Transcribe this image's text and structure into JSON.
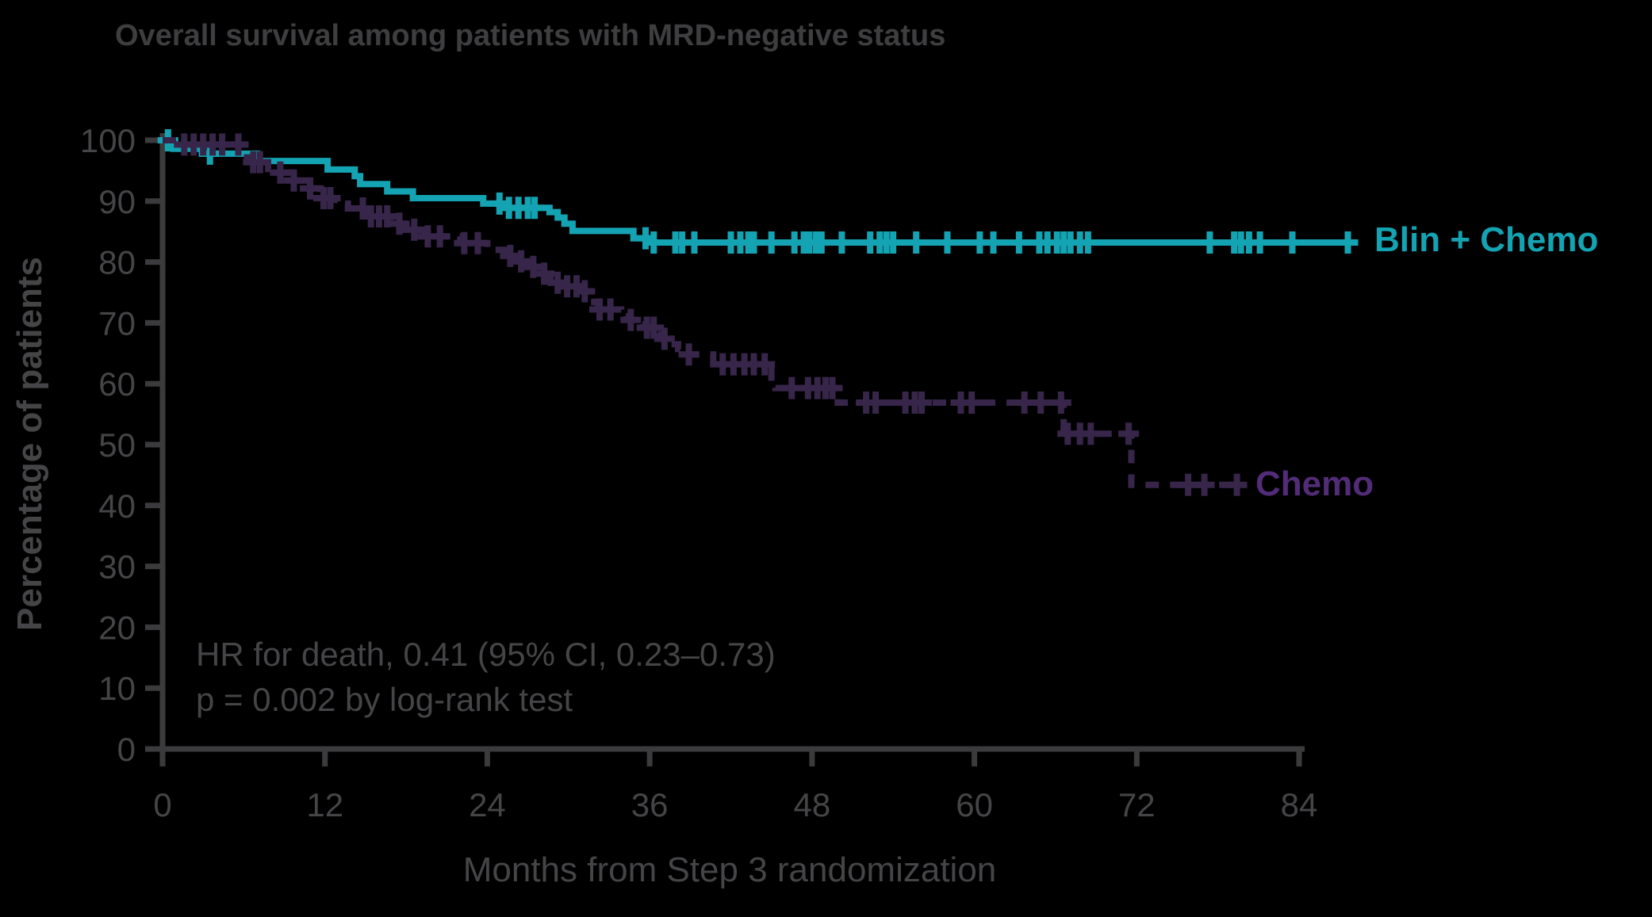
{
  "page": {
    "background": "#000000"
  },
  "chart_data": {
    "type": "line",
    "variant": "kaplan_meier_step",
    "title": "Overall survival among patients with MRD-negative status",
    "xlabel": "Months from Step 3 randomization",
    "ylabel": "Percentage of patients",
    "xlim": [
      0,
      85.5
    ],
    "ylim": [
      0,
      100
    ],
    "x_ticks": [
      0,
      12,
      24,
      36,
      48,
      60,
      72,
      84
    ],
    "y_ticks": [
      0,
      10,
      20,
      30,
      40,
      50,
      60,
      70,
      80,
      90,
      100
    ],
    "grid": false,
    "legend_position": "end-of-line-labels",
    "axis_color": "#3b3b3d",
    "text_color": "#454548",
    "title_color": "#3e3e40",
    "annotation": {
      "line1": "HR for death, 0.41 (95% CI, 0.23–0.73)",
      "line2": "p = 0.002 by log-rank test"
    },
    "series": [
      {
        "name": "Blin + Chemo",
        "color": "#14a3b2",
        "label_color": "#14a3b2",
        "line_style": "solid",
        "end_month": 87.9,
        "steps": [
          [
            0,
            100
          ],
          [
            0.8,
            98.6
          ],
          [
            2.9,
            97.8
          ],
          [
            7,
            96.6
          ],
          [
            12.2,
            95.2
          ],
          [
            14.2,
            94.1
          ],
          [
            14.6,
            92.8
          ],
          [
            16.6,
            91.6
          ],
          [
            18.5,
            90.5
          ],
          [
            23.7,
            89.6
          ],
          [
            25.3,
            88.9
          ],
          [
            28.6,
            88.2
          ],
          [
            29.2,
            87.3
          ],
          [
            29.7,
            86.3
          ],
          [
            30.3,
            85.1
          ],
          [
            34.8,
            83.9
          ],
          [
            36,
            83.2
          ]
        ],
        "censor_months": [
          0.4,
          3.5,
          24.9,
          25.6,
          26.3,
          27,
          27.5,
          35.7,
          36.3,
          37.9,
          38.4,
          39.3,
          42,
          42.7,
          43.3,
          43.7,
          45,
          46.7,
          47.4,
          47.8,
          48.3,
          48.7,
          50.2,
          52.3,
          53,
          53.5,
          54,
          55.7,
          58,
          60.4,
          61.4,
          63.3,
          64.8,
          65.4,
          66.1,
          66.6,
          67.1,
          67.8,
          68.4,
          77.4,
          79.2,
          79.7,
          80.3,
          81.1,
          83.5,
          87.6
        ]
      },
      {
        "name": "Chemo",
        "color": "#38264a",
        "label_color": "#532c78",
        "line_style": "dashed",
        "end_month": 79.9,
        "steps": [
          [
            0,
            100
          ],
          [
            1,
            99.3
          ],
          [
            5.9,
            97.2
          ],
          [
            6.5,
            96.4
          ],
          [
            7.8,
            95.3
          ],
          [
            8.4,
            94.7
          ],
          [
            9.4,
            93.4
          ],
          [
            10.8,
            92.1
          ],
          [
            11.7,
            90.5
          ],
          [
            12.7,
            89.6
          ],
          [
            13.7,
            88.8
          ],
          [
            15.1,
            87.5
          ],
          [
            16.9,
            86.3
          ],
          [
            17.9,
            85.3
          ],
          [
            19.4,
            84.2
          ],
          [
            22,
            83.1
          ],
          [
            24,
            82
          ],
          [
            25.4,
            81
          ],
          [
            26.3,
            80.1
          ],
          [
            27,
            79.2
          ],
          [
            27.8,
            78.1
          ],
          [
            28.4,
            77.2
          ],
          [
            28.9,
            76.6
          ],
          [
            29.6,
            76
          ],
          [
            31,
            75.2
          ],
          [
            31.5,
            74.4
          ],
          [
            31.9,
            73.4
          ],
          [
            32.2,
            72.2
          ],
          [
            33.9,
            71.1
          ],
          [
            34.3,
            70.5
          ],
          [
            35.1,
            69.8
          ],
          [
            35.5,
            69.2
          ],
          [
            36.6,
            68.1
          ],
          [
            37,
            67.4
          ],
          [
            37.6,
            66.5
          ],
          [
            38.1,
            65.7
          ],
          [
            38.5,
            64.8
          ],
          [
            40.7,
            63.2
          ],
          [
            45,
            61
          ],
          [
            45.3,
            59.3
          ],
          [
            49.9,
            56.9
          ],
          [
            66.6,
            51.8
          ],
          [
            71.6,
            43.4
          ]
        ],
        "censor_months": [
          1.6,
          2.3,
          3,
          3.7,
          4.4,
          5.6,
          6.7,
          7.2,
          8.7,
          9.7,
          10.9,
          11.9,
          12.4,
          14.8,
          15.4,
          16,
          16.6,
          17.5,
          18.6,
          19.6,
          20.5,
          22.3,
          23.3,
          25.7,
          26.5,
          27.4,
          28.2,
          29.2,
          29.9,
          30.6,
          31.2,
          32.3,
          33.1,
          34.6,
          35.8,
          36.3,
          37.1,
          38.9,
          41.4,
          42.2,
          43,
          43.7,
          44.5,
          46.5,
          47.7,
          48.4,
          49,
          49.5,
          52,
          52.7,
          54.9,
          55.6,
          56.1,
          59,
          59.8,
          63.7,
          64.9,
          66.4,
          66.9,
          67.8,
          68.6,
          71.4,
          75.8,
          77,
          79.4
        ]
      }
    ]
  }
}
